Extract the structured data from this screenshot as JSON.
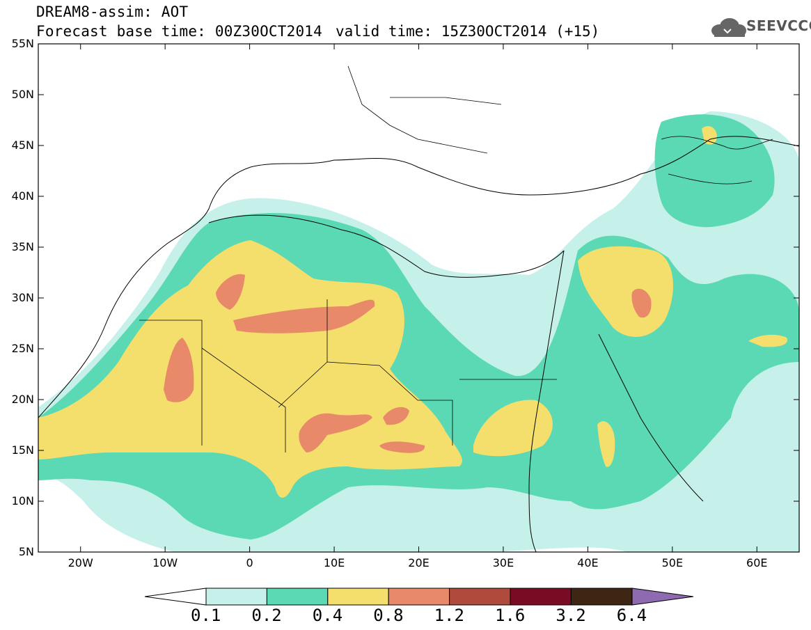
{
  "header": {
    "model_line": "DREAM8-assim: AOT",
    "base_line": "Forecast base time: 00Z30OCT2014",
    "valid_line": "valid time: 15Z30OCT2014 (+15)"
  },
  "logo": {
    "text": "SEEVCCC",
    "icon": "cloud-icon"
  },
  "map": {
    "lat_labels": [
      "55N",
      "50N",
      "45N",
      "40N",
      "35N",
      "30N",
      "25N",
      "20N",
      "15N",
      "10N",
      "5N"
    ],
    "lon_labels": [
      "20W",
      "10W",
      "0",
      "10E",
      "20E",
      "30E",
      "40E",
      "50E",
      "60E"
    ],
    "lon_range": [
      -25,
      65
    ],
    "lat_range": [
      5,
      55
    ]
  },
  "colorbar": {
    "labels": [
      "0.1",
      "0.2",
      "0.4",
      "0.8",
      "1.2",
      "1.6",
      "3.2",
      "6.4"
    ],
    "colors": [
      "#ffffff",
      "#c6f0ea",
      "#5ad9b4",
      "#f4df6c",
      "#e8896a",
      "#b04a3c",
      "#7a0b24",
      "#3d2614",
      "#8e6bb0"
    ]
  },
  "colors": {
    "level_0_1": "#c6f0ea",
    "level_0_2": "#5ad9b4",
    "level_0_4": "#f4df6c",
    "level_0_8": "#e8896a"
  }
}
